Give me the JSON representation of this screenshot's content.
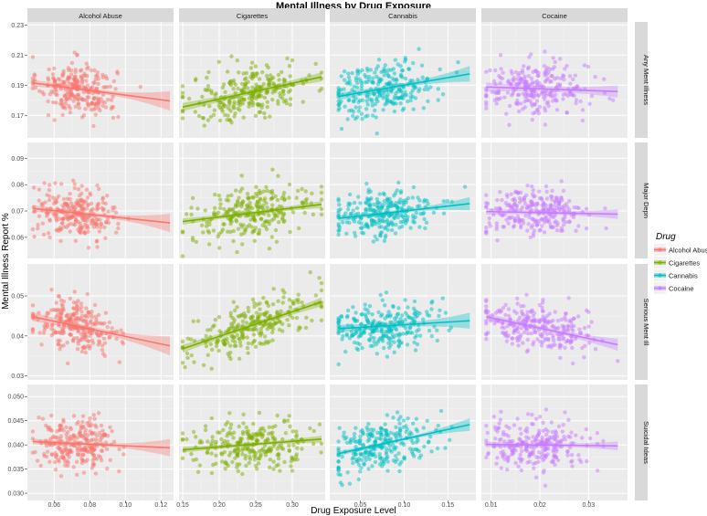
{
  "chart_data": {
    "type": "scatter",
    "title": "Mental Illness by Drug Exposure",
    "xlabel": "Drug Exposure Level",
    "ylabel": "Mental Illness Report %",
    "columns": [
      {
        "label": "Alcohol Abuse",
        "xlim": [
          0.045,
          0.127
        ],
        "ticks": [
          0.06,
          0.08,
          0.1,
          0.12
        ],
        "tick_labels": [
          "0.06",
          "0.08",
          "0.10",
          "0.12"
        ]
      },
      {
        "label": "Cigarettes",
        "xlim": [
          0.145,
          0.345
        ],
        "ticks": [
          0.15,
          0.2,
          0.25,
          0.3
        ],
        "tick_labels": [
          "0.15",
          "0.20",
          "0.25",
          "0.30"
        ]
      },
      {
        "label": "Cannabis",
        "xlim": [
          0.015,
          0.182
        ],
        "ticks": [
          0.05,
          0.1,
          0.15
        ],
        "tick_labels": [
          "0.05",
          "0.10",
          "0.15"
        ]
      },
      {
        "label": "Cocaine",
        "xlim": [
          0.008,
          0.038
        ],
        "ticks": [
          0.01,
          0.02,
          0.03
        ],
        "tick_labels": [
          "0.01",
          "0.02",
          "0.03"
        ]
      }
    ],
    "rows": [
      {
        "label": "Any Ment Illness",
        "ylim": [
          0.155,
          0.232
        ],
        "ticks": [
          0.17,
          0.19,
          0.21,
          0.23
        ],
        "tick_labels": [
          "0.17",
          "0.19",
          "0.21",
          "0.23"
        ],
        "center": 0.187,
        "spread": 0.016
      },
      {
        "label": "Major Depn",
        "ylim": [
          0.052,
          0.096
        ],
        "ticks": [
          0.06,
          0.07,
          0.08,
          0.09
        ],
        "tick_labels": [
          "0.06",
          "0.07",
          "0.08",
          "0.09"
        ],
        "center": 0.069,
        "spread": 0.0085
      },
      {
        "label": "Serious Ment Ill",
        "ylim": [
          0.029,
          0.058
        ],
        "ticks": [
          0.03,
          0.04,
          0.05
        ],
        "tick_labels": [
          "0.03",
          "0.04",
          "0.05"
        ],
        "center": 0.042,
        "spread": 0.0055
      },
      {
        "label": "Suicidal Ideas",
        "ylim": [
          0.0285,
          0.0525
        ],
        "ticks": [
          0.03,
          0.035,
          0.04,
          0.045,
          0.05
        ],
        "tick_labels": [
          "0.030",
          "0.035",
          "0.040",
          "0.045",
          "0.050"
        ],
        "center": 0.0402,
        "spread": 0.0045
      }
    ],
    "point_dists": [
      {
        "mean": 0.073,
        "sd": 0.011,
        "min": 0.048,
        "max": 0.125
      },
      {
        "mean": 0.245,
        "sd": 0.042,
        "min": 0.15,
        "max": 0.34
      },
      {
        "mean": 0.075,
        "sd": 0.03,
        "min": 0.025,
        "max": 0.175
      },
      {
        "mean": 0.019,
        "sd": 0.0055,
        "min": 0.009,
        "max": 0.036
      }
    ],
    "points_per_panel": 260,
    "fits": [
      [
        {
          "x": [
            0.048,
            0.125
          ],
          "y": [
            0.1915,
            0.1795
          ],
          "ci": [
            0.0022,
            0.0065
          ]
        },
        {
          "x": [
            0.15,
            0.34
          ],
          "y": [
            0.1755,
            0.1955
          ],
          "ci": [
            0.0028,
            0.003
          ]
        },
        {
          "x": [
            0.025,
            0.175
          ],
          "y": [
            0.1825,
            0.1975
          ],
          "ci": [
            0.0025,
            0.0052
          ]
        },
        {
          "x": [
            0.009,
            0.036
          ],
          "y": [
            0.1888,
            0.1858
          ],
          "ci": [
            0.003,
            0.004
          ]
        }
      ],
      [
        {
          "x": [
            0.048,
            0.125
          ],
          "y": [
            0.071,
            0.0655
          ],
          "ci": [
            0.0012,
            0.0035
          ]
        },
        {
          "x": [
            0.15,
            0.34
          ],
          "y": [
            0.066,
            0.0725
          ],
          "ci": [
            0.0012,
            0.0013
          ]
        },
        {
          "x": [
            0.025,
            0.175
          ],
          "y": [
            0.0672,
            0.0728
          ],
          "ci": [
            0.0011,
            0.0025
          ]
        },
        {
          "x": [
            0.009,
            0.036
          ],
          "y": [
            0.0698,
            0.0688
          ],
          "ci": [
            0.0012,
            0.0018
          ]
        }
      ],
      [
        {
          "x": [
            0.048,
            0.125
          ],
          "y": [
            0.0448,
            0.0375
          ],
          "ci": [
            0.0011,
            0.0024
          ]
        },
        {
          "x": [
            0.15,
            0.34
          ],
          "y": [
            0.0368,
            0.0485
          ],
          "ci": [
            0.001,
            0.0011
          ]
        },
        {
          "x": [
            0.025,
            0.175
          ],
          "y": [
            0.0418,
            0.0438
          ],
          "ci": [
            0.001,
            0.002
          ]
        },
        {
          "x": [
            0.009,
            0.036
          ],
          "y": [
            0.0448,
            0.0378
          ],
          "ci": [
            0.0009,
            0.0015
          ]
        }
      ],
      [
        {
          "x": [
            0.048,
            0.125
          ],
          "y": [
            0.0407,
            0.0394
          ],
          "ci": [
            0.0006,
            0.0018
          ]
        },
        {
          "x": [
            0.15,
            0.34
          ],
          "y": [
            0.039,
            0.0412
          ],
          "ci": [
            0.0006,
            0.0007
          ]
        },
        {
          "x": [
            0.025,
            0.175
          ],
          "y": [
            0.0382,
            0.0442
          ],
          "ci": [
            0.0005,
            0.0013
          ]
        },
        {
          "x": [
            0.009,
            0.036
          ],
          "y": [
            0.0401,
            0.0398
          ],
          "ci": [
            0.0006,
            0.0009
          ]
        }
      ]
    ],
    "legend": {
      "title": "Drug",
      "position": "right",
      "items": [
        {
          "label": "Alcohol Abuse",
          "color": "#F8766D"
        },
        {
          "label": "Cigarettes",
          "color": "#7CAE00"
        },
        {
          "label": "Cannabis",
          "color": "#00BFC4"
        },
        {
          "label": "Cocaine",
          "color": "#C77CFF"
        }
      ]
    },
    "grid": true,
    "panel_background": "#EBEBEB",
    "strip_background": "#D9D9D9"
  }
}
